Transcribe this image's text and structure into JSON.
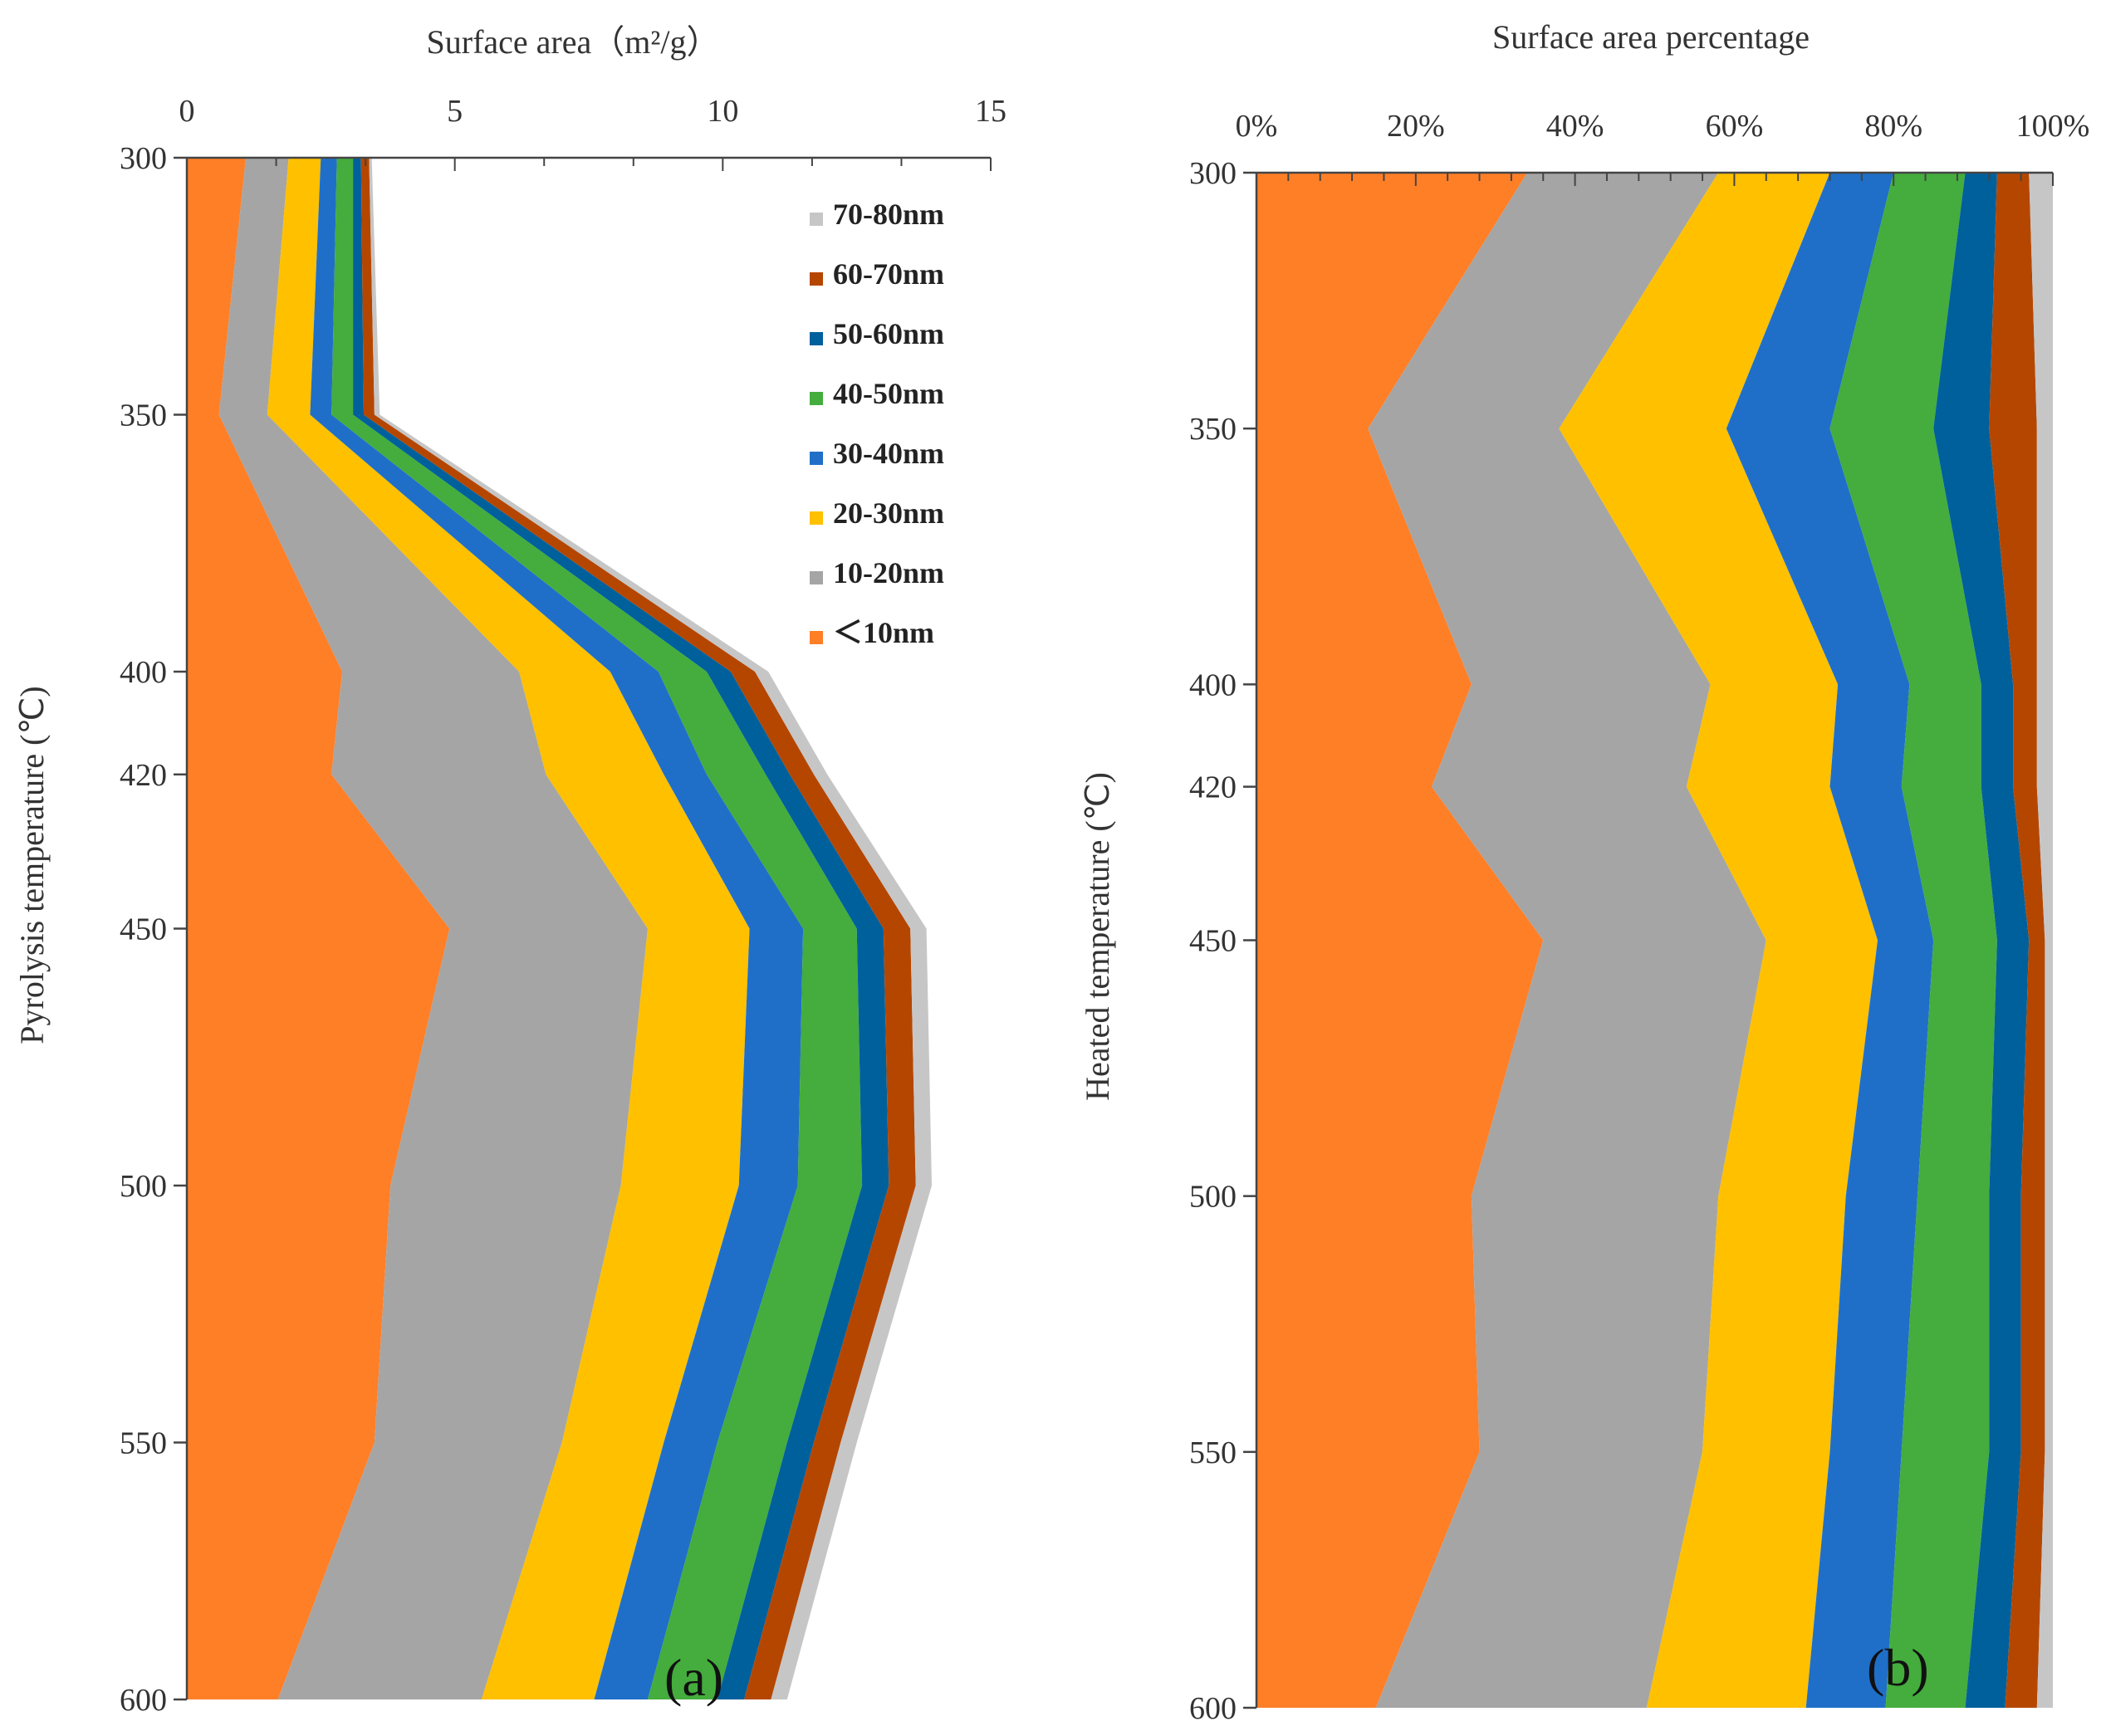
{
  "chart_data": [
    {
      "type": "area",
      "stacked": true,
      "orientation": "horizontal",
      "panel_label": "(a)",
      "title": "",
      "xlabel": "Surface area（m²/g）",
      "ylabel": "Pyrolysis temperature (℃)",
      "xlim": [
        0,
        15
      ],
      "x_ticks": [
        "0",
        "5",
        "10",
        "15"
      ],
      "categories": [
        "300",
        "350",
        "400",
        "420",
        "450",
        "500",
        "550",
        "600"
      ],
      "legend_position": "top-right",
      "series": [
        {
          "name": "＜10nm",
          "color": "#FF7F27",
          "values": [
            1.1,
            0.6,
            2.9,
            2.7,
            4.9,
            3.8,
            3.5,
            1.7
          ]
        },
        {
          "name": "10-20nm",
          "color": "#A5A5A5",
          "values": [
            0.8,
            0.9,
            3.3,
            4.0,
            3.7,
            4.3,
            3.5,
            3.8
          ]
        },
        {
          "name": "20-30nm",
          "color": "#FFC000",
          "values": [
            0.6,
            0.8,
            1.7,
            2.2,
            1.9,
            2.2,
            1.9,
            2.1
          ]
        },
        {
          "name": "30-40nm",
          "color": "#1F6FC8",
          "values": [
            0.3,
            0.4,
            0.9,
            0.8,
            1.0,
            1.1,
            1.0,
            1.0
          ]
        },
        {
          "name": "40-50nm",
          "color": "#44AD3D",
          "values": [
            0.3,
            0.4,
            0.9,
            1.1,
            1.0,
            1.2,
            1.3,
            1.3
          ]
        },
        {
          "name": "50-60nm",
          "color": "#00609C",
          "values": [
            0.15,
            0.2,
            0.45,
            0.45,
            0.5,
            0.5,
            0.5,
            0.5
          ]
        },
        {
          "name": "60-70nm",
          "color": "#B54600",
          "values": [
            0.15,
            0.2,
            0.45,
            0.45,
            0.5,
            0.5,
            0.5,
            0.5
          ]
        },
        {
          "name": "70-80nm",
          "color": "#C6C6C6",
          "values": [
            0.05,
            0.1,
            0.25,
            0.25,
            0.3,
            0.3,
            0.3,
            0.3
          ]
        }
      ]
    },
    {
      "type": "area",
      "stacked": true,
      "orientation": "horizontal",
      "panel_label": "(b)",
      "title": "",
      "xlabel": "Surface area percentage",
      "ylabel": "Heated temperature (℃)",
      "xlim": [
        0,
        100
      ],
      "x_ticks": [
        "0%",
        "20%",
        "40%",
        "60%",
        "80%",
        "100%"
      ],
      "categories": [
        "300",
        "350",
        "400",
        "420",
        "450",
        "500",
        "550",
        "600"
      ],
      "series": [
        {
          "name": "＜10nm",
          "color": "#FF7F27",
          "values": [
            34,
            14,
            27,
            22,
            36,
            27,
            28,
            15
          ]
        },
        {
          "name": "10-20nm",
          "color": "#A5A5A5",
          "values": [
            24,
            24,
            30,
            32,
            28,
            31,
            28,
            34
          ]
        },
        {
          "name": "20-30nm",
          "color": "#FFC000",
          "values": [
            14,
            21,
            16,
            18,
            14,
            16,
            16,
            20
          ]
        },
        {
          "name": "30-40nm",
          "color": "#1F6FC8",
          "values": [
            8,
            13,
            9,
            9,
            7,
            9,
            9,
            10
          ]
        },
        {
          "name": "40-50nm",
          "color": "#44AD3D",
          "values": [
            9,
            13,
            9,
            10,
            8,
            9,
            11,
            10
          ]
        },
        {
          "name": "50-60nm",
          "color": "#00609C",
          "values": [
            4,
            7,
            4,
            4,
            4,
            4,
            4,
            5
          ]
        },
        {
          "name": "60-70nm",
          "color": "#B54600",
          "values": [
            4,
            6,
            3,
            3,
            2,
            3,
            3,
            4
          ]
        },
        {
          "name": "70-80nm",
          "color": "#C6C6C6",
          "values": [
            3,
            2,
            2,
            2,
            1,
            1,
            1,
            2
          ]
        }
      ]
    }
  ]
}
